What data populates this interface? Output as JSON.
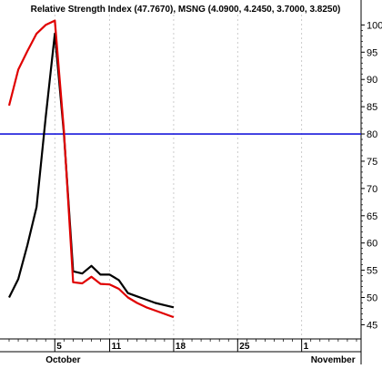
{
  "chart_data": {
    "type": "line",
    "title": "Relative Strength Index (47.7670), MSNG (4.0900, 4.2450, 3.7000, 3.8250)",
    "colors": {
      "rsi_line": "#000000",
      "price_line": "#e00000",
      "reference_line": "#1a1adb",
      "grid": "#bfbfbf",
      "axis": "#000000"
    },
    "y_axis": {
      "ticks": [
        45,
        50,
        55,
        60,
        65,
        70,
        75,
        80,
        85,
        90,
        95,
        100
      ],
      "range": [
        42.4,
        101.9
      ],
      "position": "right"
    },
    "reference_line": {
      "value": 80
    },
    "x_axis": {
      "day_ticks": [
        {
          "label": "5",
          "x": 5
        },
        {
          "label": "11",
          "x": 11
        },
        {
          "label": "18",
          "x": 18
        },
        {
          "label": "25",
          "x": 25
        },
        {
          "label": "1",
          "x": 32
        }
      ],
      "month_labels": [
        {
          "label": "October",
          "x": 4
        },
        {
          "label": "November",
          "x": 33
        }
      ],
      "range": [
        0,
        38.5
      ]
    },
    "series": [
      {
        "key": "rsi",
        "x": [
          0,
          1,
          2,
          3,
          4,
          5,
          6,
          7,
          8,
          9,
          10,
          11,
          12,
          13,
          14,
          15,
          16,
          17,
          18
        ],
        "values": [
          50,
          53.4,
          59.6,
          66.6,
          83,
          98.4,
          80,
          54.8,
          54.4,
          55.8,
          54.2,
          54.2,
          53.2,
          50.8,
          50.2,
          49.6,
          49.0,
          48.6,
          48.2
        ]
      },
      {
        "key": "price",
        "x": [
          0,
          1,
          2,
          3,
          4,
          5,
          6,
          7,
          8,
          9,
          10,
          11,
          12,
          13,
          14,
          15,
          16,
          17,
          18
        ],
        "values": [
          85.2,
          91.8,
          95.2,
          98.4,
          100,
          100.8,
          80.5,
          52.8,
          52.6,
          53.8,
          52.5,
          52.4,
          51.6,
          50.0,
          49.0,
          48.2,
          47.6,
          47.0,
          46.4
        ]
      }
    ]
  }
}
